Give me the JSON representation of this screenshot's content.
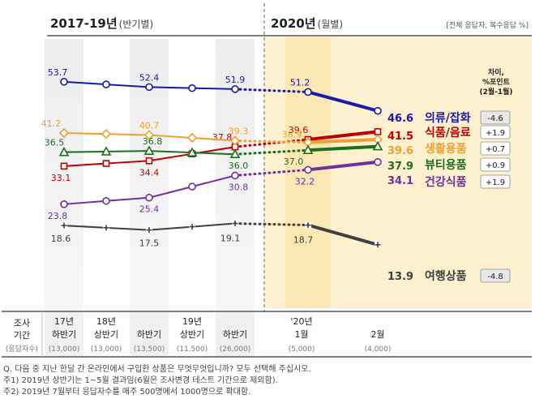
{
  "header": {
    "left_title": "2017-19년",
    "left_sub": "(반기별)",
    "right_title": "2020년",
    "right_sub": "(월별)",
    "scope": "[전체 응답자, 복수응답 %]"
  },
  "diff_header": [
    "차이,",
    "%포인트",
    "(2월-1월)"
  ],
  "table": {
    "row_label_1": [
      "조사",
      "기간"
    ],
    "row_label_2": "(응답자수)",
    "periods": [
      {
        "top": "17년",
        "bottom": "하반기",
        "n": "(13,000)"
      },
      {
        "top": "18년",
        "bottom": "상반기",
        "n": "(13,000)"
      },
      {
        "top": "",
        "bottom": "하반기",
        "n": "(13,500)"
      },
      {
        "top": "19년",
        "bottom": "상반기",
        "n": "(11,500)"
      },
      {
        "top": "",
        "bottom": "하반기",
        "n": "(26,000)"
      },
      {
        "top": "'20년",
        "bottom": "1월",
        "n": "(5,000)"
      },
      {
        "top": "",
        "bottom": "2월",
        "n": "(4,000)"
      }
    ]
  },
  "footnotes": [
    "Q. 다음 중 지난 한달 간 온라인에서 구입한 상품은 무엇무엇입니까? 모두 선택해 주십시오.",
    "주1) 2019년 상반기는 1~5월 결과임(6월은 조사변경 테스트 기간으로 제외함).",
    "주2) 2019년 7월부터 응답자수를 매주 500명에서 1000명으로 확대함."
  ],
  "chart_data": {
    "type": "line",
    "categories": [
      "17년 하반기",
      "18년 상반기",
      "18년 하반기",
      "19년 상반기",
      "19년 하반기",
      "'20년 1월",
      "2020년 2월"
    ],
    "ylabel": "",
    "series": [
      {
        "name": "의류/잡화",
        "color": "#1a1aa8",
        "marker": "circle",
        "values": [
          53.7,
          null,
          52.4,
          null,
          51.9,
          51.2,
          46.6
        ],
        "diff": "-4.6",
        "diff_bg": "#e8e8e8"
      },
      {
        "name": "식품/음료",
        "color": "#c00000",
        "marker": "square",
        "values": [
          33.1,
          null,
          34.4,
          null,
          37.8,
          39.6,
          41.5
        ],
        "diff": "+1.9",
        "diff_bg": "#ffffff"
      },
      {
        "name": "생활용품",
        "color": "#f0a030",
        "marker": "diamond",
        "values": [
          41.2,
          null,
          40.7,
          null,
          39.3,
          38.9,
          39.6
        ],
        "diff": "+0.7",
        "diff_bg": "#ffffff"
      },
      {
        "name": "뷰티용품",
        "color": "#1e6e1e",
        "marker": "triangle",
        "values": [
          36.5,
          null,
          36.8,
          null,
          36.0,
          37.0,
          37.9
        ],
        "diff": "+0.9",
        "diff_bg": "#ffffff"
      },
      {
        "name": "건강식품",
        "color": "#7030a0",
        "marker": "circle",
        "values": [
          23.8,
          null,
          25.4,
          null,
          30.8,
          32.2,
          34.1
        ],
        "diff": "+1.9",
        "diff_bg": "#ffffff"
      },
      {
        "name": "여행상품",
        "color": "#404040",
        "marker": "plus",
        "values": [
          18.6,
          null,
          17.5,
          null,
          19.1,
          18.7,
          13.9
        ],
        "diff": "-4.8",
        "diff_bg": "#e8e8e8"
      }
    ]
  }
}
